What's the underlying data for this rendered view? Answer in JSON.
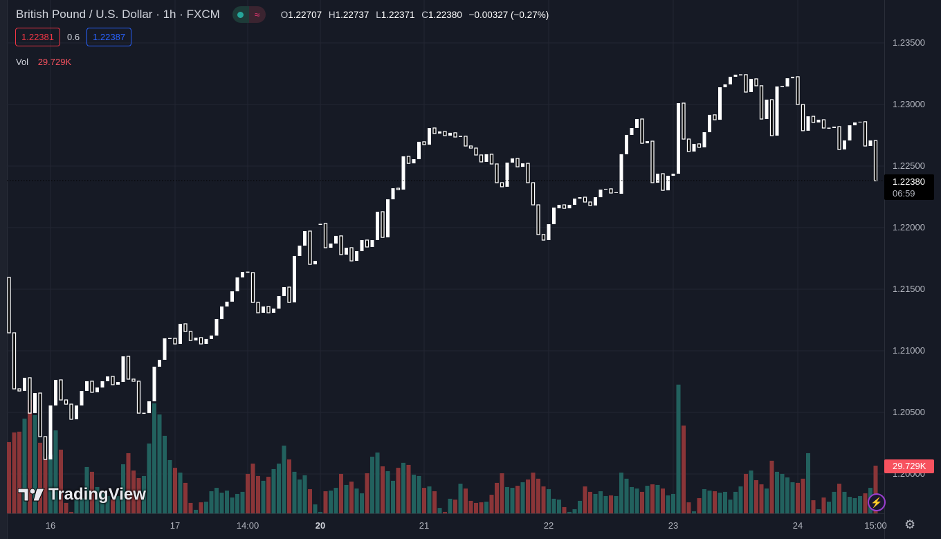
{
  "header": {
    "title": "British Pound / U.S. Dollar · 1h · FXCM",
    "ohlc": {
      "o_label": "O",
      "o": "1.22707",
      "h_label": "H",
      "h": "1.22737",
      "l_label": "L",
      "l": "1.22371",
      "c_label": "C",
      "c": "1.22380",
      "change": "−0.00327 (−0.27%)"
    },
    "toggle_icons": [
      "dot-icon",
      "wave-icon"
    ]
  },
  "quotes": {
    "sell": "1.22381",
    "spread": "0.6",
    "buy": "1.22387"
  },
  "volume_legend": {
    "label": "Vol",
    "value": "29.729K"
  },
  "price_box": {
    "price": "1.22380",
    "countdown": "06:59"
  },
  "volume_box": "29.729K",
  "watermark": "TradingView",
  "colors": {
    "bg": "#161a25",
    "up_volume": "#22615e",
    "down_volume": "#8a3538",
    "candle": "#ffffff",
    "sell": "#f23645",
    "buy": "#2962ff"
  },
  "chart_data": {
    "type": "candlestick",
    "title": "British Pound / U.S. Dollar · 1h · FXCM",
    "ylim": [
      1.195,
      1.2375
    ],
    "y_ticks": [
      "1.23500",
      "1.23000",
      "1.22500",
      "1.22000",
      "1.21500",
      "1.21000",
      "1.20500",
      "1.20000"
    ],
    "y_tick_values": [
      1.235,
      1.23,
      1.225,
      1.22,
      1.215,
      1.21,
      1.205,
      1.2
    ],
    "x_ticks": [
      {
        "label": "16",
        "index": 8,
        "bold": false
      },
      {
        "label": "17",
        "index": 32,
        "bold": false
      },
      {
        "label": "14:00",
        "index": 46,
        "bold": false
      },
      {
        "label": "20",
        "index": 60,
        "bold": true
      },
      {
        "label": "21",
        "index": 80,
        "bold": false
      },
      {
        "label": "22",
        "index": 104,
        "bold": false
      },
      {
        "label": "23",
        "index": 128,
        "bold": false
      },
      {
        "label": "24",
        "index": 152,
        "bold": false
      },
      {
        "label": "15:00",
        "index": 167,
        "bold": false
      }
    ],
    "last_price": 1.2238,
    "grid": true,
    "candles_oc": [
      [
        1.21596,
        1.21146
      ],
      [
        1.21146,
        1.20691
      ],
      [
        1.20691,
        1.20674
      ],
      [
        1.20674,
        1.20781
      ],
      [
        1.20781,
        1.20494
      ],
      [
        1.20494,
        1.20657
      ],
      [
        1.20657,
        1.20303
      ],
      [
        1.20303,
        1.20118
      ],
      [
        1.20118,
        1.20556
      ],
      [
        1.20556,
        1.20764
      ],
      [
        1.20764,
        1.20601
      ],
      [
        1.20601,
        1.20567
      ],
      [
        1.20567,
        1.20444
      ],
      [
        1.20444,
        1.20556
      ],
      [
        1.20556,
        1.20674
      ],
      [
        1.20674,
        1.20753
      ],
      [
        1.20753,
        1.20663
      ],
      [
        1.20663,
        1.20702
      ],
      [
        1.20702,
        1.20753
      ],
      [
        1.20753,
        1.20792
      ],
      [
        1.20792,
        1.20725
      ],
      [
        1.20725,
        1.20747
      ],
      [
        1.20747,
        1.20955
      ],
      [
        1.20955,
        1.2077
      ],
      [
        1.2077,
        1.20753
      ],
      [
        1.20753,
        1.20494
      ],
      [
        1.20494,
        1.20494
      ],
      [
        1.20494,
        1.2059
      ],
      [
        1.2059,
        1.20871
      ],
      [
        1.20871,
        1.20927
      ],
      [
        1.20927,
        1.21101
      ],
      [
        1.21101,
        1.21101
      ],
      [
        1.21101,
        1.21056
      ],
      [
        1.21056,
        1.21219
      ],
      [
        1.21219,
        1.21157
      ],
      [
        1.21157,
        1.21084
      ],
      [
        1.21084,
        1.21107
      ],
      [
        1.21107,
        1.21056
      ],
      [
        1.21056,
        1.21096
      ],
      [
        1.21096,
        1.21124
      ],
      [
        1.21124,
        1.21258
      ],
      [
        1.21258,
        1.2136
      ],
      [
        1.2136,
        1.21399
      ],
      [
        1.21399,
        1.21483
      ],
      [
        1.21483,
        1.21596
      ],
      [
        1.21596,
        1.2164
      ],
      [
        1.2164,
        1.21635
      ],
      [
        1.21635,
        1.21393
      ],
      [
        1.21393,
        1.21309
      ],
      [
        1.21309,
        1.2136
      ],
      [
        1.2136,
        1.21309
      ],
      [
        1.21309,
        1.21343
      ],
      [
        1.21343,
        1.21444
      ],
      [
        1.21444,
        1.21517
      ],
      [
        1.21517,
        1.21393
      ],
      [
        1.21393,
        1.2177
      ],
      [
        1.2177,
        1.21854
      ],
      [
        1.21854,
        1.21972
      ],
      [
        1.21972,
        1.21702
      ],
      [
        1.21702,
        1.2173
      ],
      [
        1.22028,
        1.22028
      ],
      [
        1.22034,
        1.21837
      ],
      [
        1.21837,
        1.21871
      ],
      [
        1.21871,
        1.21933
      ],
      [
        1.21933,
        1.21781
      ],
      [
        1.21781,
        1.21837
      ],
      [
        1.21837,
        1.2173
      ],
      [
        1.2173,
        1.21809
      ],
      [
        1.21809,
        1.21899
      ],
      [
        1.21899,
        1.21843
      ],
      [
        1.21843,
        1.21899
      ],
      [
        1.21899,
        1.22129
      ],
      [
        1.22129,
        1.21921
      ],
      [
        1.21921,
        1.2223
      ],
      [
        1.2223,
        1.2232
      ],
      [
        1.2232,
        1.22309
      ],
      [
        1.22309,
        1.22579
      ],
      [
        1.22579,
        1.22522
      ],
      [
        1.22522,
        1.22556
      ],
      [
        1.22556,
        1.22697
      ],
      [
        1.22697,
        1.22674
      ],
      [
        1.22674,
        1.22809
      ],
      [
        1.22809,
        1.22764
      ],
      [
        1.22764,
        1.22781
      ],
      [
        1.22781,
        1.22747
      ],
      [
        1.22747,
        1.2277
      ],
      [
        1.2277,
        1.22736
      ],
      [
        1.22742,
        1.22742
      ],
      [
        1.22742,
        1.22663
      ],
      [
        1.22663,
        1.22646
      ],
      [
        1.22646,
        1.2259
      ],
      [
        1.2259,
        1.22534
      ],
      [
        1.22534,
        1.22596
      ],
      [
        1.22596,
        1.22517
      ],
      [
        1.22517,
        1.22365
      ],
      [
        1.22365,
        1.22332
      ],
      [
        1.22332,
        1.22528
      ],
      [
        1.22528,
        1.22562
      ],
      [
        1.22562,
        1.22494
      ],
      [
        1.22494,
        1.22522
      ],
      [
        1.22522,
        1.22365
      ],
      [
        1.22365,
        1.22185
      ],
      [
        1.22185,
        1.21944
      ],
      [
        1.21944,
        1.21899
      ],
      [
        1.21899,
        1.22028
      ],
      [
        1.22028,
        1.22163
      ],
      [
        1.22157,
        1.22185
      ],
      [
        1.22185,
        1.22157
      ],
      [
        1.22157,
        1.22185
      ],
      [
        1.22185,
        1.22236
      ],
      [
        1.22236,
        1.22247
      ],
      [
        1.22247,
        1.22208
      ],
      [
        1.22208,
        1.2218
      ],
      [
        1.2218,
        1.22247
      ],
      [
        1.22247,
        1.22309
      ],
      [
        1.22309,
        1.22315
      ],
      [
        1.22315,
        1.22281
      ],
      [
        1.22281,
        1.22287
      ],
      [
        1.22275,
        1.22596
      ],
      [
        1.22596,
        1.22753
      ],
      [
        1.22753,
        1.22809
      ],
      [
        1.22809,
        1.22882
      ],
      [
        1.22882,
        1.22685
      ],
      [
        1.22685,
        1.22702
      ],
      [
        1.22702,
        1.22365
      ],
      [
        1.22365,
        1.22438
      ],
      [
        1.22438,
        1.22303
      ],
      [
        1.22303,
        1.22421
      ],
      [
        1.22421,
        1.22438
      ],
      [
        1.22438,
        1.23011
      ],
      [
        1.23011,
        1.22719
      ],
      [
        1.22719,
        1.22618
      ],
      [
        1.22618,
        1.2268
      ],
      [
        1.2268,
        1.22652
      ],
      [
        1.22652,
        1.22775
      ],
      [
        1.22775,
        1.22916
      ],
      [
        1.22916,
        1.22876
      ],
      [
        1.22876,
        1.2314
      ],
      [
        1.2314,
        1.23163
      ],
      [
        1.23163,
        1.23225
      ],
      [
        1.23225,
        1.23242
      ],
      [
        1.23242,
        1.23242
      ],
      [
        1.23242,
        1.23101
      ],
      [
        1.23101,
        1.23208
      ],
      [
        1.23208,
        1.23152
      ],
      [
        1.23152,
        1.22882
      ],
      [
        1.22882,
        1.23039
      ],
      [
        1.23039,
        1.22747
      ],
      [
        1.22747,
        1.23146
      ],
      [
        1.23146,
        1.23146
      ],
      [
        1.23146,
        1.23213
      ],
      [
        1.23213,
        1.23225
      ],
      [
        1.23225,
        1.23
      ],
      [
        1.23,
        1.22787
      ],
      [
        1.22787,
        1.22904
      ],
      [
        1.22904,
        1.22854
      ],
      [
        1.22854,
        1.22876
      ],
      [
        1.22876,
        1.22809
      ],
      [
        1.22809,
        1.22809
      ],
      [
        1.22809,
        1.2282
      ],
      [
        1.2282,
        1.22635
      ],
      [
        1.22635,
        1.22708
      ],
      [
        1.22708,
        1.22831
      ],
      [
        1.22831,
        1.22854
      ],
      [
        1.22854,
        1.2286
      ],
      [
        1.2286,
        1.22663
      ],
      [
        1.22663,
        1.22708
      ],
      [
        1.22707,
        1.2238
      ]
    ],
    "volume_k": [
      44.4,
      50.4,
      50.9,
      59.0,
      70.7,
      61.2,
      44.0,
      35.3,
      36.6,
      51.7,
      39.7,
      6.5,
      0.9,
      8.6,
      9.5,
      28.9,
      25.9,
      16.4,
      12.5,
      10.8,
      8.6,
      10.8,
      30.6,
      37.5,
      26.7,
      22.0,
      23.3,
      43.5,
      68.5,
      61.6,
      48.3,
      33.2,
      28.4,
      25.4,
      19.0,
      6.5,
      2.2,
      6.9,
      7.3,
      13.8,
      15.9,
      12.9,
      14.2,
      9.9,
      12.1,
      13.4,
      24.6,
      31.0,
      23.3,
      20.3,
      22.8,
      27.6,
      31.0,
      42.2,
      33.6,
      25.9,
      21.1,
      23.7,
      15.1,
      5.6,
      0.9,
      13.8,
      14.2,
      15.9,
      24.6,
      17.7,
      19.8,
      15.5,
      12.5,
      25.0,
      35.3,
      37.9,
      29.3,
      26.3,
      20.3,
      28.4,
      31.5,
      30.2,
      24.1,
      23.3,
      15.9,
      16.8,
      13.8,
      3.4,
      0.9,
      9.1,
      8.6,
      18.5,
      15.5,
      7.8,
      6.5,
      6.9,
      7.3,
      11.6,
      19.0,
      25.0,
      16.4,
      15.9,
      17.2,
      19.4,
      21.1,
      25.4,
      21.6,
      16.8,
      15.1,
      9.1,
      8.6,
      3.9,
      0.9,
      2.6,
      7.8,
      16.8,
      13.4,
      12.1,
      13.8,
      10.8,
      11.2,
      10.8,
      25.4,
      21.6,
      16.4,
      15.5,
      13.4,
      17.2,
      18.1,
      17.7,
      15.5,
      11.2,
      12.1,
      80.2,
      54.7,
      6.9,
      1.3,
      9.5,
      15.1,
      14.2,
      13.8,
      12.9,
      13.4,
      8.6,
      13.4,
      16.8,
      24.6,
      26.7,
      20.7,
      18.1,
      15.5,
      32.8,
      25.9,
      24.6,
      22.4,
      19.4,
      19.0,
      21.6,
      37.5,
      8.2,
      2.6,
      9.9,
      7.3,
      13.4,
      18.5,
      13.4,
      10.3,
      9.5,
      10.8,
      12.5,
      15.9,
      29.729
    ]
  }
}
